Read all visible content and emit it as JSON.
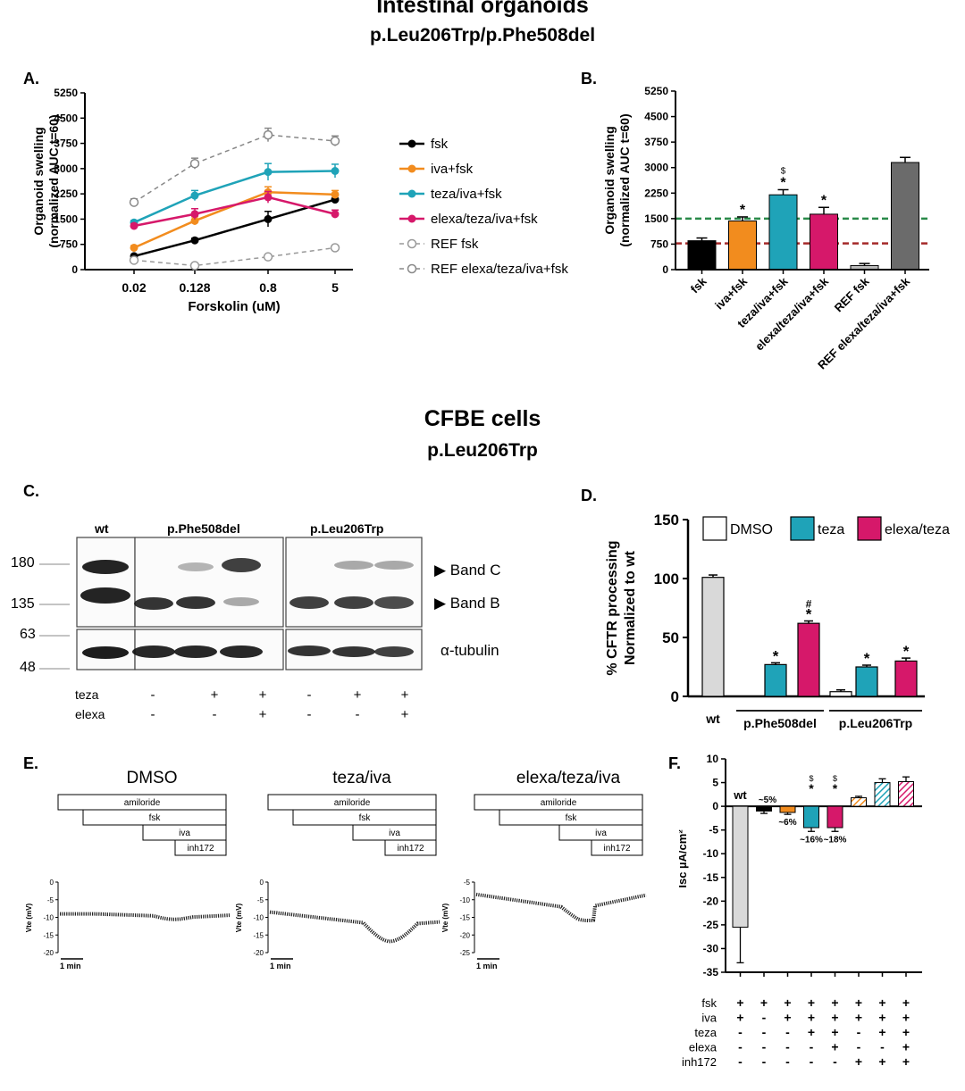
{
  "titles": {
    "organoid_heading": "Intestinal organoids",
    "organoid_genotype": "p.Leu206Trp/p.Phe508del",
    "cfbe_heading": "CFBE cells",
    "cfbe_genotype": "p.Leu206Trp"
  },
  "panels": {
    "a": "A.",
    "b": "B.",
    "c": "C.",
    "d": "D.",
    "e": "E.",
    "f": "F."
  },
  "colors": {
    "fsk": "#000000",
    "iva": "#f28c1e",
    "teza": "#1fa3b8",
    "elexa": "#d6186a",
    "ref": "#999999",
    "ref_bar": "#6b6b6b",
    "green_line": "#2a8a4a",
    "red_line": "#a52a2a"
  },
  "chart_data": [
    {
      "id": "A",
      "type": "line",
      "xlabel": "Forskolin (uM)",
      "ylabel": "Organoid swelling (normalized AUC t=60)",
      "ylabel_line1": "Organoid swelling",
      "ylabel_line2": "(normalized AUC t=60)",
      "x_ticks": [
        "0.02",
        "0.128",
        "0.8",
        "5"
      ],
      "y_ticks": [
        0,
        750,
        1500,
        2250,
        3000,
        3750,
        4500,
        5250
      ],
      "ylim": [
        0,
        5250
      ],
      "series": [
        {
          "name": "fsk",
          "color": "#000000",
          "style": "solid",
          "values": [
            400,
            870,
            1500,
            2080
          ],
          "errors": [
            40,
            60,
            230,
            110
          ]
        },
        {
          "name": "iva+fsk",
          "color": "#f28c1e",
          "style": "solid",
          "values": [
            650,
            1450,
            2300,
            2230
          ],
          "errors": [
            60,
            120,
            160,
            120
          ]
        },
        {
          "name": "teza/iva+fsk",
          "color": "#1fa3b8",
          "style": "solid",
          "values": [
            1400,
            2200,
            2900,
            2930
          ],
          "errors": [
            60,
            150,
            250,
            200
          ]
        },
        {
          "name": "elexa/teza/iva+fsk",
          "color": "#d6186a",
          "style": "solid",
          "values": [
            1300,
            1650,
            2150,
            1650
          ],
          "errors": [
            60,
            160,
            170,
            120
          ]
        },
        {
          "name": "REF fsk",
          "color": "#999999",
          "style": "dashed",
          "values": [
            280,
            120,
            380,
            650
          ],
          "errors": [
            20,
            20,
            30,
            40
          ]
        },
        {
          "name": "REF elexa/teza/iva+fsk",
          "color": "#888888",
          "style": "dashed",
          "values": [
            2000,
            3150,
            4000,
            3820
          ],
          "errors": [
            100,
            160,
            200,
            150
          ]
        }
      ]
    },
    {
      "id": "B",
      "type": "bar",
      "ylabel": "Organoid swelling (normalized AUC t=60)",
      "ylabel_line1": "Organoid swelling",
      "ylabel_line2": "(normalized AUC t=60)",
      "categories": [
        "fsk",
        "iva+fsk",
        "teza/iva+fsk",
        "elexa/teza/iva+fsk",
        "REF fsk",
        "REF elexa/teza/iva+fsk"
      ],
      "values": [
        850,
        1430,
        2200,
        1630,
        120,
        3150
      ],
      "errors": [
        80,
        120,
        150,
        200,
        60,
        150
      ],
      "colors": [
        "#000000",
        "#f28c1e",
        "#1fa3b8",
        "#d6186a",
        "#bbbbbb",
        "#6b6b6b"
      ],
      "annotations": [
        "",
        "*",
        "*",
        "*",
        "",
        ""
      ],
      "annotations_top": [
        "",
        "",
        "$",
        "",
        "",
        ""
      ],
      "y_ticks": [
        0,
        750,
        1500,
        2250,
        3000,
        3750,
        4500,
        5250
      ],
      "ylim": [
        0,
        5250
      ],
      "reference_lines": [
        {
          "value": 1500,
          "color": "#2a8a4a"
        },
        {
          "value": 770,
          "color": "#a52a2a"
        }
      ]
    },
    {
      "id": "D",
      "type": "bar",
      "ylabel": "% CFTR processing Normalized to wt",
      "ylabel_line1": "% CFTR processing",
      "ylabel_line2": "Normalized to wt",
      "legend": [
        {
          "name": "DMSO",
          "color": "#ffffff"
        },
        {
          "name": "teza",
          "color": "#1fa3b8"
        },
        {
          "name": "elexa/teza",
          "color": "#d6186a"
        }
      ],
      "groups": [
        "wt",
        "p.Phe508del",
        "p.Leu206Trp"
      ],
      "bars": [
        {
          "group": "wt",
          "series": "DMSO",
          "value": 101,
          "error": 2,
          "color": "#d9d9d9",
          "mark": "",
          "mark2": ""
        },
        {
          "group": "p.Phe508del",
          "series": "DMSO",
          "value": 0,
          "error": 0,
          "color": "#ffffff",
          "mark": "",
          "mark2": ""
        },
        {
          "group": "p.Phe508del",
          "series": "teza",
          "value": 27,
          "error": 1.5,
          "color": "#1fa3b8",
          "mark": "*",
          "mark2": ""
        },
        {
          "group": "p.Phe508del",
          "series": "elexa/teza",
          "value": 62,
          "error": 2,
          "color": "#d6186a",
          "mark": "*",
          "mark2": "#"
        },
        {
          "group": "p.Leu206Trp",
          "series": "DMSO",
          "value": 4,
          "error": 1.5,
          "color": "#ffffff",
          "mark": "",
          "mark2": ""
        },
        {
          "group": "p.Leu206Trp",
          "series": "teza",
          "value": 25,
          "error": 1.5,
          "color": "#1fa3b8",
          "mark": "*",
          "mark2": ""
        },
        {
          "group": "p.Leu206Trp",
          "series": "elexa/teza",
          "value": 30,
          "error": 2.5,
          "color": "#d6186a",
          "mark": "*",
          "mark2": ""
        }
      ],
      "y_ticks": [
        0,
        50,
        100,
        150
      ],
      "ylim": [
        0,
        150
      ]
    },
    {
      "id": "F",
      "type": "bar",
      "ylabel": "Isc µA/cm²",
      "values": [
        -25.5,
        -1.0,
        -1.3,
        -4.5,
        -4.5,
        1.8,
        5.0,
        5.2
      ],
      "errors": [
        7.5,
        0.5,
        0.4,
        0.8,
        0.8,
        0.3,
        0.8,
        1.0
      ],
      "colors": [
        "#d9d9d9",
        "#000000",
        "#f28c1e",
        "#1fa3b8",
        "#d6186a",
        "#f28c1e",
        "#1fa3b8",
        "#d6186a"
      ],
      "hatched": [
        false,
        false,
        false,
        false,
        false,
        true,
        true,
        true
      ],
      "labels": [
        "wt",
        "~5%",
        "~6%",
        "~16%",
        "~18%",
        "",
        "",
        ""
      ],
      "marks": [
        "",
        "",
        "",
        "*",
        "*",
        "",
        "",
        ""
      ],
      "marks2": [
        "",
        "",
        "",
        "$",
        "$",
        "",
        "",
        ""
      ],
      "y_ticks": [
        10,
        5,
        0,
        -5,
        -10,
        -15,
        -20,
        -25,
        -30,
        -35
      ],
      "ylim": [
        -35,
        10
      ],
      "condition_rows": [
        {
          "name": "fsk",
          "signs": [
            "+",
            "+",
            "+",
            "+",
            "+",
            "+",
            "+",
            "+"
          ]
        },
        {
          "name": "iva",
          "signs": [
            "+",
            "-",
            "+",
            "+",
            "+",
            "+",
            "+",
            "+"
          ]
        },
        {
          "name": "teza",
          "signs": [
            "-",
            "-",
            "-",
            "+",
            "+",
            "-",
            "+",
            "+"
          ]
        },
        {
          "name": "elexa",
          "signs": [
            "-",
            "-",
            "-",
            "-",
            "+",
            "-",
            "-",
            "+"
          ]
        },
        {
          "name": "inh172",
          "signs": [
            "-",
            "-",
            "-",
            "-",
            "-",
            "+",
            "+",
            "+"
          ]
        }
      ]
    }
  ],
  "blot": {
    "headers": [
      "wt",
      "p.Phe508del",
      "p.Leu206Trp"
    ],
    "markers": [
      "180",
      "135",
      "63",
      "48"
    ],
    "band_labels": [
      "▶ Band C",
      "▶ Band B"
    ],
    "loading_label": "α-tubulin",
    "row_labels": [
      "teza",
      "elexa"
    ],
    "teza_signs": [
      "-",
      "+",
      "+",
      "-",
      "+",
      "+"
    ],
    "elexa_signs": [
      "-",
      "-",
      "+",
      "-",
      "-",
      "+"
    ]
  },
  "traces": {
    "panels": [
      {
        "title": "DMSO",
        "y_ticks": [
          "0",
          "-5",
          "-10",
          "-15",
          "-20"
        ],
        "ymin": -20,
        "ymax": 0
      },
      {
        "title": "teza/iva",
        "y_ticks": [
          "0",
          "-5",
          "-10",
          "-15",
          "-20"
        ],
        "ymin": -20,
        "ymax": 0
      },
      {
        "title": "elexa/teza/iva",
        "y_ticks": [
          "-5",
          "-10",
          "-15",
          "-20",
          "-25"
        ],
        "ymin": -25,
        "ymax": -5
      }
    ],
    "drugs": [
      "amiloride",
      "fsk",
      "iva",
      "inh172"
    ],
    "y_axis_label": "Vte (mV)",
    "scale_label": "1 min"
  }
}
